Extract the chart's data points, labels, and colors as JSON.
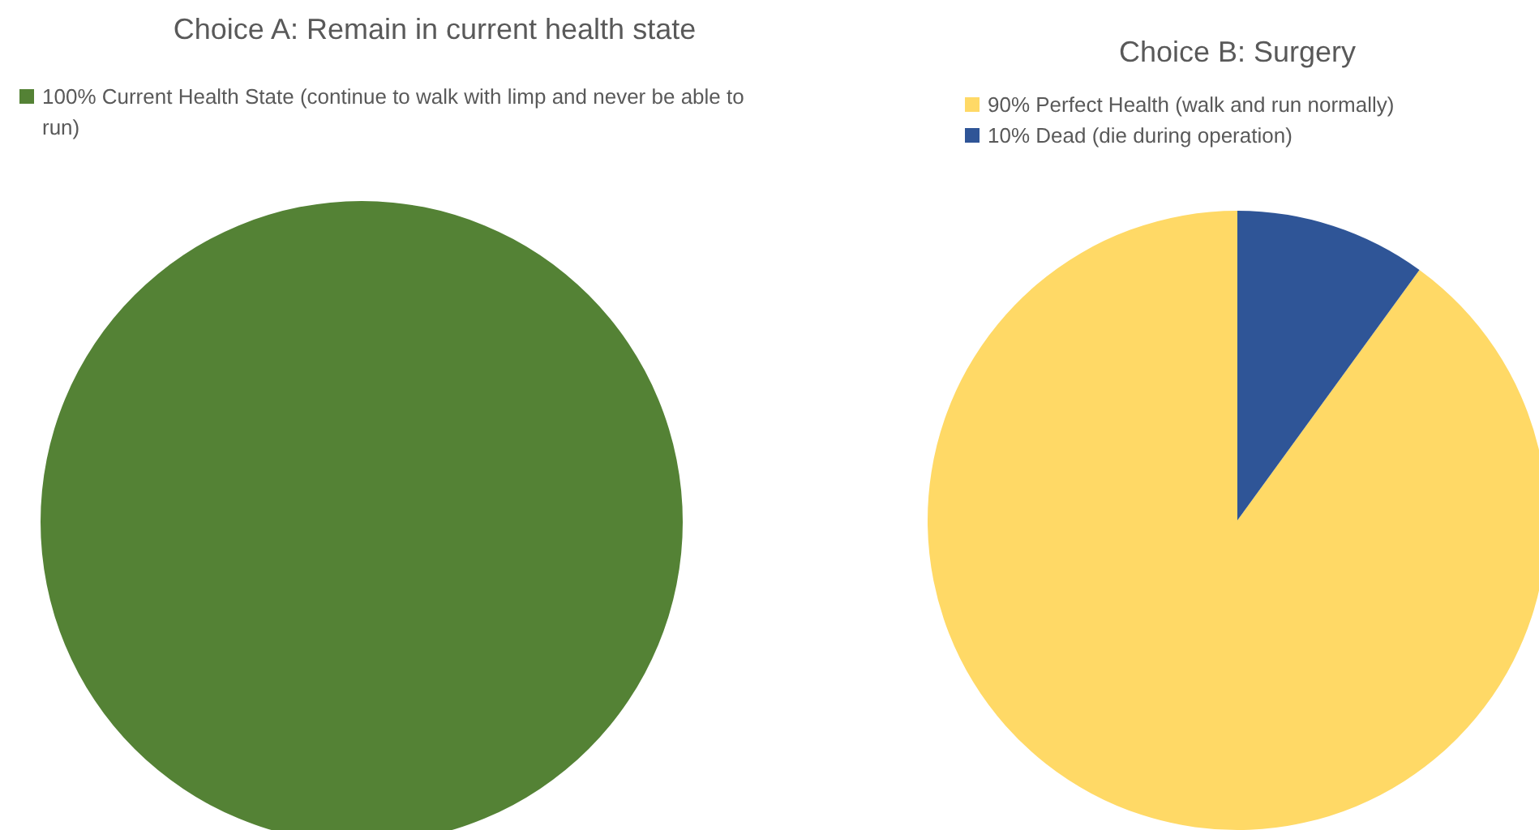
{
  "chart_data": [
    {
      "type": "pie",
      "title": "Choice A: Remain in current health state",
      "categories": [
        "100% Current Health State (continue to walk with limp and never be able to run)"
      ],
      "values": [
        100
      ],
      "colors": [
        "#548235"
      ],
      "legend": "top left"
    },
    {
      "type": "pie",
      "title": "Choice B: Surgery",
      "categories": [
        "90% Perfect Health (walk and run normally)",
        "10% Dead (die during operation)"
      ],
      "values": [
        90,
        10
      ],
      "colors": [
        "#ffd966",
        "#2f5597"
      ],
      "legend": "top left"
    }
  ]
}
